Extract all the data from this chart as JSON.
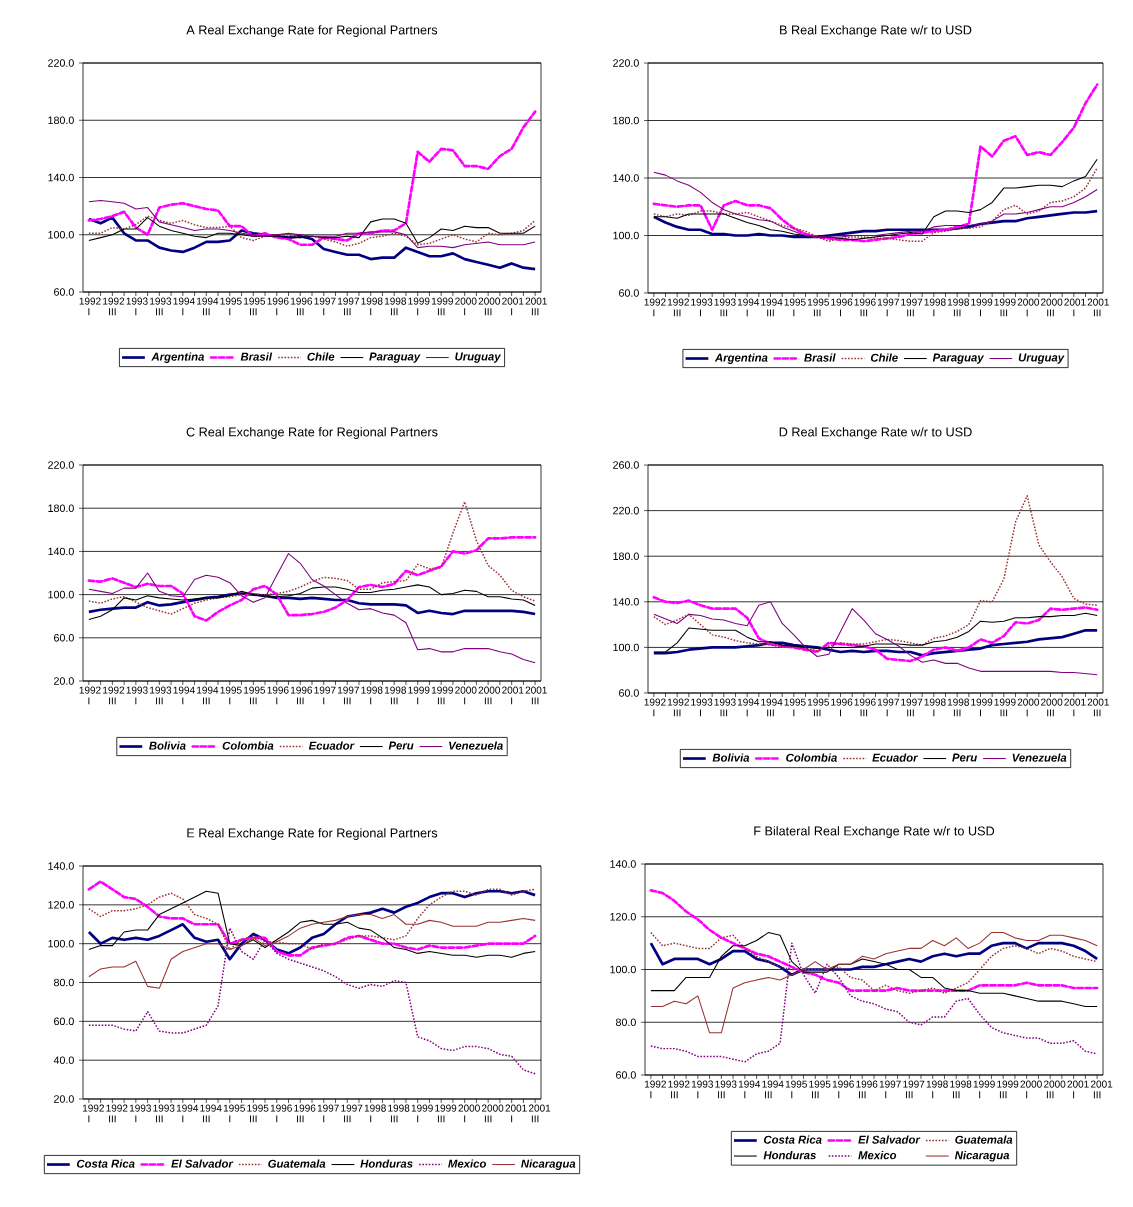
{
  "chart_data": [
    {
      "type": "line",
      "title": "A Real Exchange Rate for Regional Partners",
      "categories": [
        "1992 I",
        null,
        "1992 III",
        null,
        "1993 I",
        null,
        "1993 III",
        null,
        "1994 I",
        null,
        "1994 III",
        null,
        "1995 I",
        null,
        "1995 III",
        null,
        "1996 I",
        null,
        "1996 III",
        null,
        "1997 I",
        null,
        "1997 III",
        null,
        "1998 I",
        null,
        "1998 III",
        null,
        "1999 I",
        null,
        "1999 III",
        null,
        "2000 I",
        null,
        "2000 III",
        null,
        "2001 I",
        null,
        "2001 III"
      ],
      "ylim": [
        60,
        220
      ],
      "yticks": [
        {
          "value": 60,
          "label": "60.0"
        },
        {
          "value": 100,
          "label": "100.0"
        },
        {
          "value": 140,
          "label": "140.0"
        },
        {
          "value": 180,
          "label": "180.0"
        },
        {
          "value": 220,
          "label": "220.0"
        }
      ],
      "grid": "y",
      "legend": "bottom",
      "series": [
        {
          "name": "Argentina",
          "color": "#000080",
          "line_style": "solid",
          "values": [
            111,
            108,
            112,
            101,
            96,
            96,
            91,
            89,
            88,
            91,
            95,
            95,
            96,
            103,
            101,
            100,
            99,
            98,
            99,
            97,
            90,
            88,
            86,
            86,
            83,
            84,
            84,
            91,
            88,
            85,
            85,
            87,
            83,
            81,
            79,
            77,
            80,
            77,
            76
          ]
        },
        {
          "name": "Brasil",
          "color": "#ff00ff",
          "line_style": "dashed",
          "values": [
            110,
            111,
            113,
            116,
            105,
            100,
            119,
            121,
            122,
            120,
            118,
            117,
            106,
            106,
            99,
            101,
            98,
            97,
            93,
            93,
            98,
            97,
            96,
            101,
            101,
            103,
            103,
            108,
            158,
            151,
            160,
            159,
            148,
            148,
            146,
            155,
            160,
            175,
            186
          ]
        },
        {
          "name": "Chile",
          "color": "#993333",
          "line_style": "dotted",
          "values": [
            101,
            101,
            105,
            104,
            107,
            113,
            110,
            108,
            110,
            107,
            105,
            105,
            106,
            98,
            96,
            99,
            100,
            100,
            98,
            99,
            97,
            95,
            92,
            94,
            98,
            99,
            101,
            99,
            93,
            94,
            97,
            100,
            97,
            95,
            101,
            100,
            101,
            103,
            110
          ]
        },
        {
          "name": "Paraguay",
          "color": "#000000",
          "line_style": "solid",
          "values": [
            96,
            98,
            100,
            104,
            104,
            112,
            106,
            103,
            101,
            99,
            98,
            101,
            101,
            100,
            99,
            99,
            99,
            98,
            98,
            99,
            98,
            98,
            99,
            98,
            109,
            111,
            111,
            108,
            94,
            98,
            104,
            103,
            106,
            105,
            105,
            101,
            101,
            101,
            106
          ]
        },
        {
          "name": "Uruguay",
          "color": "#800080",
          "line_style": "solid",
          "values": [
            123,
            124,
            123,
            122,
            118,
            119,
            109,
            107,
            105,
            103,
            104,
            104,
            103,
            101,
            100,
            99,
            100,
            101,
            100,
            99,
            99,
            99,
            101,
            101,
            102,
            102,
            102,
            100,
            91,
            92,
            92,
            91,
            93,
            94,
            95,
            93,
            93,
            93,
            95
          ]
        }
      ]
    },
    {
      "type": "line",
      "title": "B Real Exchange Rate w/r to USD",
      "categories": [
        "1992 I",
        null,
        "1992 III",
        null,
        "1993 I",
        null,
        "1993 III",
        null,
        "1994 I",
        null,
        "1994 III",
        null,
        "1995 I",
        null,
        "1995 III",
        null,
        "1996 I",
        null,
        "1996 III",
        null,
        "1997 I",
        null,
        "1997 III",
        null,
        "1998 I",
        null,
        "1998 III",
        null,
        "1999 I",
        null,
        "1999 III",
        null,
        "2000 I",
        null,
        "2000 III",
        null,
        "2001 I",
        null,
        "2001 III"
      ],
      "ylim": [
        60,
        220
      ],
      "yticks": [
        {
          "value": 60,
          "label": "60.0"
        },
        {
          "value": 100,
          "label": "100.0"
        },
        {
          "value": 140,
          "label": "140.0"
        },
        {
          "value": 180,
          "label": "180.0"
        },
        {
          "value": 220,
          "label": "220.0"
        }
      ],
      "grid": "y",
      "legend": "bottom",
      "series": [
        {
          "name": "Argentina",
          "color": "#000080",
          "line_style": "solid",
          "values": [
            113,
            109,
            106,
            104,
            104,
            101,
            101,
            100,
            100,
            101,
            100,
            100,
            99,
            99,
            99,
            100,
            101,
            102,
            103,
            103,
            104,
            104,
            104,
            104,
            104,
            104,
            105,
            106,
            108,
            109,
            110,
            110,
            112,
            113,
            114,
            115,
            116,
            116,
            117
          ]
        },
        {
          "name": "Brasil",
          "color": "#ff00ff",
          "line_style": "dashed",
          "values": [
            122,
            121,
            120,
            121,
            121,
            104,
            121,
            124,
            121,
            121,
            119,
            111,
            105,
            101,
            99,
            98,
            97,
            97,
            96,
            97,
            98,
            99,
            101,
            102,
            103,
            104,
            106,
            108,
            162,
            155,
            166,
            169,
            156,
            158,
            156,
            165,
            175,
            192,
            205
          ]
        },
        {
          "name": "Chile",
          "color": "#993333",
          "line_style": "dotted",
          "values": [
            115,
            113,
            115,
            114,
            117,
            117,
            115,
            115,
            116,
            113,
            110,
            107,
            105,
            103,
            99,
            96,
            98,
            99,
            99,
            98,
            98,
            97,
            96,
            96,
            102,
            103,
            105,
            105,
            106,
            110,
            118,
            121,
            115,
            117,
            123,
            124,
            127,
            133,
            147
          ]
        },
        {
          "name": "Paraguay",
          "color": "#000000",
          "line_style": "solid",
          "values": [
            113,
            113,
            112,
            115,
            115,
            115,
            115,
            112,
            109,
            107,
            104,
            103,
            101,
            100,
            99,
            99,
            98,
            97,
            98,
            99,
            100,
            101,
            102,
            101,
            113,
            117,
            117,
            116,
            118,
            123,
            133,
            133,
            134,
            135,
            135,
            134,
            138,
            141,
            153
          ]
        },
        {
          "name": "Uruguay",
          "color": "#800080",
          "line_style": "solid",
          "values": [
            144,
            142,
            138,
            135,
            130,
            123,
            118,
            115,
            113,
            111,
            110,
            106,
            103,
            100,
            99,
            99,
            99,
            100,
            100,
            100,
            101,
            102,
            103,
            103,
            106,
            107,
            107,
            107,
            108,
            110,
            115,
            115,
            116,
            118,
            120,
            120,
            123,
            127,
            132
          ]
        }
      ]
    },
    {
      "type": "line",
      "title": "C Real Exchange Rate for Regional Partners",
      "categories": [
        "1992 I",
        null,
        "1992 III",
        null,
        "1993 I",
        null,
        "1993 III",
        null,
        "1994 I",
        null,
        "1994 III",
        null,
        "1995 I",
        null,
        "1995 III",
        null,
        "1996 I",
        null,
        "1996 III",
        null,
        "1997 I",
        null,
        "1997 III",
        null,
        "1998 I",
        null,
        "1998 III",
        null,
        "1999 I",
        null,
        "1999 III",
        null,
        "2000 I",
        null,
        "2000 III",
        null,
        "2001 I",
        null,
        "2001 III"
      ],
      "ylim": [
        20,
        220
      ],
      "yticks": [
        {
          "value": 20,
          "label": "20.0"
        },
        {
          "value": 60,
          "label": "60.0"
        },
        {
          "value": 100,
          "label": "100.0"
        },
        {
          "value": 140,
          "label": "140.0"
        },
        {
          "value": 180,
          "label": "180.0"
        },
        {
          "value": 220,
          "label": "220.0"
        }
      ],
      "grid": "y",
      "legend": "bottom",
      "series": [
        {
          "name": "Bolivia",
          "color": "#000080",
          "line_style": "solid",
          "values": [
            84,
            86,
            87,
            88,
            88,
            93,
            90,
            91,
            93,
            95,
            97,
            98,
            100,
            101,
            100,
            99,
            97,
            97,
            96,
            97,
            96,
            95,
            95,
            92,
            91,
            91,
            91,
            90,
            83,
            85,
            83,
            82,
            85,
            85,
            85,
            85,
            85,
            84,
            82
          ]
        },
        {
          "name": "Colombia",
          "color": "#ff00ff",
          "line_style": "dashed",
          "values": [
            113,
            112,
            115,
            111,
            107,
            110,
            108,
            108,
            101,
            80,
            76,
            84,
            90,
            95,
            105,
            108,
            100,
            81,
            81,
            82,
            84,
            88,
            95,
            107,
            109,
            107,
            110,
            122,
            118,
            122,
            126,
            140,
            138,
            141,
            152,
            152,
            153,
            153,
            153
          ]
        },
        {
          "name": "Ecuador",
          "color": "#993333",
          "line_style": "dotted",
          "values": [
            94,
            92,
            96,
            98,
            93,
            88,
            85,
            82,
            87,
            92,
            95,
            97,
            98,
            100,
            100,
            100,
            101,
            103,
            107,
            112,
            116,
            115,
            113,
            105,
            105,
            111,
            112,
            113,
            128,
            124,
            125,
            157,
            186,
            150,
            127,
            118,
            104,
            98,
            94
          ]
        },
        {
          "name": "Peru",
          "color": "#000000",
          "line_style": "solid",
          "values": [
            77,
            80,
            86,
            97,
            95,
            99,
            97,
            96,
            95,
            96,
            97,
            97,
            99,
            103,
            100,
            98,
            98,
            99,
            101,
            106,
            107,
            107,
            105,
            102,
            102,
            104,
            105,
            107,
            109,
            107,
            100,
            101,
            104,
            103,
            98,
            98,
            96,
            95,
            90
          ]
        },
        {
          "name": "Venezuela",
          "color": "#800080",
          "line_style": "solid",
          "values": [
            105,
            103,
            101,
            106,
            106,
            120,
            103,
            99,
            98,
            114,
            118,
            116,
            111,
            99,
            93,
            97,
            118,
            138,
            129,
            114,
            108,
            100,
            92,
            86,
            87,
            83,
            81,
            74,
            49,
            50,
            47,
            47,
            50,
            50,
            50,
            47,
            45,
            40,
            37
          ]
        }
      ]
    },
    {
      "type": "line",
      "title": "D Real Exchange Rate w/r to USD",
      "categories": [
        "1992 I",
        null,
        "1992 III",
        null,
        "1993 I",
        null,
        "1993 III",
        null,
        "1994 I",
        null,
        "1994 III",
        null,
        "1995 I",
        null,
        "1995 III",
        null,
        "1996 I",
        null,
        "1996 III",
        null,
        "1997 I",
        null,
        "1997 III",
        null,
        "1998 I",
        null,
        "1998 III",
        null,
        "1999 I",
        null,
        "1999 III",
        null,
        "2000 I",
        null,
        "2000 III",
        null,
        "2001 I",
        null,
        "2001 III"
      ],
      "ylim": [
        60,
        260
      ],
      "yticks": [
        {
          "value": 60,
          "label": "60.0"
        },
        {
          "value": 100,
          "label": "100.0"
        },
        {
          "value": 140,
          "label": "140.0"
        },
        {
          "value": 180,
          "label": "180.0"
        },
        {
          "value": 220,
          "label": "220.0"
        },
        {
          "value": 260,
          "label": "260.0"
        }
      ],
      "grid": "y",
      "legend": "bottom",
      "series": [
        {
          "name": "Bolivia",
          "color": "#000080",
          "line_style": "solid",
          "values": [
            95,
            95,
            96,
            98,
            99,
            100,
            100,
            100,
            101,
            102,
            104,
            104,
            102,
            101,
            100,
            98,
            96,
            97,
            96,
            97,
            97,
            96,
            96,
            93,
            95,
            96,
            97,
            98,
            99,
            102,
            103,
            104,
            105,
            107,
            108,
            109,
            112,
            115,
            115
          ]
        },
        {
          "name": "Colombia",
          "color": "#ff00ff",
          "line_style": "dashed",
          "values": [
            144,
            140,
            139,
            141,
            137,
            134,
            134,
            134,
            126,
            108,
            103,
            101,
            100,
            98,
            96,
            104,
            103,
            102,
            101,
            98,
            90,
            89,
            88,
            92,
            98,
            100,
            97,
            100,
            107,
            104,
            110,
            122,
            121,
            124,
            134,
            133,
            134,
            135,
            133
          ]
        },
        {
          "name": "Ecuador",
          "color": "#993333",
          "line_style": "dotted",
          "values": [
            127,
            120,
            124,
            129,
            120,
            111,
            109,
            106,
            104,
            103,
            102,
            101,
            100,
            99,
            97,
            101,
            104,
            103,
            103,
            105,
            107,
            106,
            104,
            102,
            108,
            110,
            114,
            120,
            141,
            140,
            160,
            210,
            233,
            190,
            175,
            162,
            143,
            138,
            137
          ]
        },
        {
          "name": "Peru",
          "color": "#000000",
          "line_style": "solid",
          "values": [
            96,
            96,
            104,
            117,
            116,
            115,
            115,
            115,
            109,
            105,
            105,
            102,
            101,
            100,
            99,
            100,
            100,
            100,
            101,
            103,
            103,
            103,
            102,
            102,
            105,
            106,
            109,
            114,
            123,
            122,
            123,
            126,
            126,
            127,
            127,
            128,
            128,
            130,
            128
          ]
        },
        {
          "name": "Venezuela",
          "color": "#800080",
          "line_style": "solid",
          "values": [
            129,
            125,
            121,
            129,
            128,
            125,
            124,
            121,
            119,
            137,
            140,
            121,
            111,
            100,
            92,
            94,
            114,
            134,
            124,
            112,
            107,
            101,
            93,
            87,
            89,
            86,
            86,
            82,
            79,
            79,
            79,
            79,
            79,
            79,
            79,
            78,
            78,
            77,
            76
          ]
        }
      ]
    },
    {
      "type": "line",
      "title": "E Real Exchange Rate for Regional Partners",
      "categories": [
        "1992 I",
        null,
        "1992 III",
        null,
        "1993 I",
        null,
        "1993 III",
        null,
        "1994 I",
        null,
        "1994 III",
        null,
        "1995 I",
        null,
        "1995 III",
        null,
        "1996 I",
        null,
        "1996 III",
        null,
        "1997 I",
        null,
        "1997 III",
        null,
        "1998 I",
        null,
        "1998 III",
        null,
        "1999 I",
        null,
        "1999 III",
        null,
        "2000 I",
        null,
        "2000 III",
        null,
        "2001 I",
        null,
        "2001 III"
      ],
      "ylim": [
        20,
        140
      ],
      "yticks": [
        {
          "value": 20,
          "label": "20.0"
        },
        {
          "value": 40,
          "label": "40.0"
        },
        {
          "value": 60,
          "label": "60.0"
        },
        {
          "value": 80,
          "label": "80.0"
        },
        {
          "value": 100,
          "label": "100.0"
        },
        {
          "value": 120,
          "label": "120.0"
        },
        {
          "value": 140,
          "label": "140.0"
        }
      ],
      "grid": "y",
      "legend": "bottom",
      "series": [
        {
          "name": "Costa Rica",
          "color": "#000080",
          "line_style": "solid",
          "values": [
            106,
            100,
            103,
            102,
            103,
            102,
            104,
            107,
            110,
            103,
            101,
            102,
            92,
            100,
            105,
            102,
            97,
            95,
            98,
            103,
            105,
            110,
            114,
            115,
            116,
            118,
            116,
            119,
            121,
            124,
            126,
            126,
            124,
            126,
            127,
            127,
            126,
            127,
            125
          ]
        },
        {
          "name": "El Salvador",
          "color": "#ff00ff",
          "line_style": "dashed",
          "values": [
            128,
            132,
            128,
            124,
            123,
            119,
            114,
            113,
            113,
            110,
            110,
            110,
            100,
            102,
            103,
            103,
            96,
            94,
            94,
            98,
            99,
            100,
            103,
            104,
            102,
            100,
            100,
            98,
            97,
            99,
            98,
            98,
            98,
            99,
            100,
            100,
            100,
            100,
            104
          ]
        },
        {
          "name": "Guatemala",
          "color": "#993333",
          "line_style": "dotted",
          "values": [
            118,
            114,
            117,
            117,
            118,
            120,
            124,
            126,
            123,
            115,
            113,
            110,
            97,
            102,
            104,
            101,
            101,
            100,
            100,
            97,
            100,
            100,
            102,
            104,
            104,
            103,
            102,
            104,
            113,
            120,
            124,
            127,
            127,
            125,
            128,
            128,
            125,
            127,
            128
          ]
        },
        {
          "name": "Honduras",
          "color": "#000000",
          "line_style": "solid",
          "values": [
            97,
            99,
            99,
            106,
            107,
            107,
            115,
            118,
            121,
            124,
            127,
            126,
            100,
            99,
            102,
            98,
            102,
            106,
            111,
            112,
            110,
            110,
            111,
            108,
            107,
            103,
            98,
            97,
            95,
            96,
            95,
            94,
            94,
            93,
            94,
            94,
            93,
            95,
            96
          ]
        },
        {
          "name": "Mexico",
          "color": "#800080",
          "line_style": "dotted",
          "values": [
            58,
            58,
            58,
            56,
            55,
            65,
            55,
            54,
            54,
            56,
            58,
            68,
            108,
            96,
            92,
            102,
            95,
            92,
            90,
            88,
            86,
            83,
            79,
            77,
            79,
            78,
            81,
            80,
            52,
            50,
            46,
            45,
            47,
            47,
            46,
            43,
            42,
            35,
            33
          ]
        },
        {
          "name": "Nicaragua",
          "color": "#993333",
          "line_style": "solid",
          "values": [
            83,
            87,
            88,
            88,
            91,
            78,
            77,
            92,
            96,
            98,
            100,
            100,
            97,
            99,
            103,
            99,
            101,
            104,
            108,
            110,
            111,
            112,
            114,
            115,
            115,
            113,
            115,
            110,
            110,
            112,
            111,
            109,
            109,
            109,
            111,
            111,
            112,
            113,
            112
          ]
        }
      ]
    },
    {
      "type": "line",
      "title": "F Bilateral Real Exchange Rate w/r to USD",
      "categories": [
        "1992 I",
        null,
        "1992 III",
        null,
        "1993 I",
        null,
        "1993 III",
        null,
        "1994 I",
        null,
        "1994 III",
        null,
        "1995 I",
        null,
        "1995 III",
        null,
        "1996 I",
        null,
        "1996 III",
        null,
        "1997 I",
        null,
        "1997 III",
        null,
        "1998 I",
        null,
        "1998 III",
        null,
        "1999 I",
        null,
        "1999 III",
        null,
        "2000 I",
        null,
        "2000 III",
        null,
        "2001 I",
        null,
        "2001 III"
      ],
      "ylim": [
        60,
        140
      ],
      "yticks": [
        {
          "value": 60,
          "label": "60.0"
        },
        {
          "value": 80,
          "label": "80.0"
        },
        {
          "value": 100,
          "label": "100.0"
        },
        {
          "value": 120,
          "label": "120.0"
        },
        {
          "value": 140,
          "label": "140.0"
        }
      ],
      "grid": "y",
      "legend": "bottom",
      "series": [
        {
          "name": "Costa Rica",
          "color": "#000080",
          "line_style": "solid",
          "values": [
            110,
            102,
            104,
            104,
            104,
            102,
            104,
            107,
            107,
            104,
            103,
            101,
            98,
            100,
            100,
            100,
            100,
            100,
            101,
            101,
            102,
            103,
            104,
            103,
            105,
            106,
            105,
            106,
            106,
            109,
            110,
            110,
            108,
            110,
            110,
            110,
            109,
            107,
            104
          ]
        },
        {
          "name": "El Salvador",
          "color": "#ff00ff",
          "line_style": "dashed",
          "values": [
            130,
            129,
            126,
            122,
            119,
            115,
            112,
            110,
            108,
            106,
            105,
            103,
            101,
            99,
            98,
            96,
            95,
            92,
            92,
            92,
            92,
            93,
            92,
            92,
            92,
            92,
            92,
            92,
            94,
            94,
            94,
            94,
            95,
            94,
            94,
            94,
            93,
            93,
            93
          ]
        },
        {
          "name": "Guatemala",
          "color": "#993333",
          "line_style": "dotted",
          "values": [
            114,
            109,
            110,
            109,
            108,
            108,
            112,
            113,
            108,
            105,
            103,
            101,
            100,
            100,
            100,
            100,
            101,
            97,
            96,
            92,
            94,
            92,
            91,
            92,
            93,
            91,
            93,
            95,
            100,
            105,
            108,
            109,
            108,
            106,
            108,
            107,
            105,
            104,
            103
          ]
        },
        {
          "name": "Honduras",
          "color": "#000000",
          "line_style": "solid",
          "values": [
            92,
            92,
            92,
            97,
            97,
            97,
            105,
            109,
            109,
            111,
            114,
            113,
            103,
            99,
            99,
            99,
            102,
            102,
            104,
            103,
            102,
            100,
            100,
            97,
            97,
            93,
            92,
            92,
            91,
            91,
            91,
            90,
            89,
            88,
            88,
            88,
            87,
            86,
            86
          ]
        },
        {
          "name": "Mexico",
          "color": "#800080",
          "line_style": "dotted",
          "values": [
            71,
            70,
            70,
            69,
            67,
            67,
            67,
            66,
            65,
            68,
            69,
            72,
            110,
            98,
            91,
            102,
            97,
            90,
            88,
            87,
            85,
            84,
            80,
            79,
            82,
            82,
            88,
            89,
            83,
            78,
            76,
            75,
            74,
            74,
            72,
            72,
            73,
            69,
            68
          ]
        },
        {
          "name": "Nicaragua",
          "color": "#993333",
          "line_style": "solid",
          "values": [
            86,
            86,
            88,
            87,
            90,
            76,
            76,
            93,
            95,
            96,
            97,
            96,
            98,
            100,
            103,
            100,
            102,
            102,
            105,
            104,
            106,
            107,
            108,
            108,
            111,
            109,
            112,
            108,
            110,
            114,
            114,
            112,
            111,
            111,
            113,
            113,
            112,
            111,
            109
          ]
        }
      ]
    }
  ]
}
